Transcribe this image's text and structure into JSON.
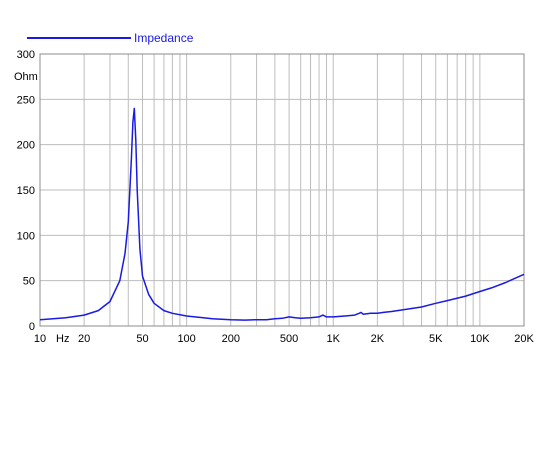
{
  "chart_data": {
    "type": "line",
    "x_scale": "log",
    "xlim": [
      10,
      20000
    ],
    "ylim": [
      0,
      300
    ],
    "grid": true,
    "legend_position": "top-left",
    "ylabel": "Ohm",
    "xlabel": "Hz",
    "colors": {
      "series": "#1a1ae6",
      "grid": "#bdbdbd",
      "legend_text": "#1a1ae6"
    },
    "y_ticks": [
      {
        "value": 0,
        "label": "0"
      },
      {
        "value": 50,
        "label": "50"
      },
      {
        "value": 100,
        "label": "100"
      },
      {
        "value": 150,
        "label": "150"
      },
      {
        "value": 200,
        "label": "200"
      },
      {
        "value": 250,
        "label": "250"
      },
      {
        "value": 300,
        "label": "300"
      }
    ],
    "x_ticks": [
      {
        "value": 10,
        "label": "10"
      },
      {
        "value": 20,
        "label": "20"
      },
      {
        "value": 50,
        "label": "50"
      },
      {
        "value": 100,
        "label": "100"
      },
      {
        "value": 200,
        "label": "200"
      },
      {
        "value": 500,
        "label": "500"
      },
      {
        "value": 1000,
        "label": "1K"
      },
      {
        "value": 2000,
        "label": "2K"
      },
      {
        "value": 5000,
        "label": "5K"
      },
      {
        "value": 10000,
        "label": "10K"
      },
      {
        "value": 20000,
        "label": "20K"
      }
    ],
    "x_minor_grid": [
      30,
      40,
      60,
      70,
      80,
      90,
      300,
      400,
      600,
      700,
      800,
      900,
      3000,
      4000,
      6000,
      7000,
      8000,
      9000
    ],
    "series": [
      {
        "name": "Impedance",
        "x": [
          10,
          15,
          20,
          25,
          30,
          35,
          38,
          40,
          42,
          43,
          44,
          45,
          46,
          48,
          50,
          55,
          60,
          70,
          80,
          100,
          130,
          150,
          200,
          250,
          300,
          350,
          400,
          450,
          500,
          550,
          600,
          700,
          800,
          850,
          900,
          1000,
          1200,
          1400,
          1500,
          1550,
          1600,
          1800,
          2000,
          2200,
          2500,
          3000,
          4000,
          5000,
          6000,
          8000,
          10000,
          12000,
          15000,
          20000
        ],
        "values": [
          7,
          9,
          12,
          17,
          27,
          50,
          80,
          115,
          185,
          225,
          240,
          205,
          150,
          85,
          55,
          35,
          25,
          17,
          14,
          11,
          9,
          8,
          7,
          6.5,
          7,
          7,
          8,
          8.5,
          10,
          9,
          8.5,
          9,
          10,
          12,
          10,
          10,
          11,
          12,
          14,
          15,
          13,
          14,
          14,
          15,
          16,
          18,
          21,
          25,
          28,
          33,
          38,
          42,
          48,
          57
        ]
      }
    ]
  }
}
